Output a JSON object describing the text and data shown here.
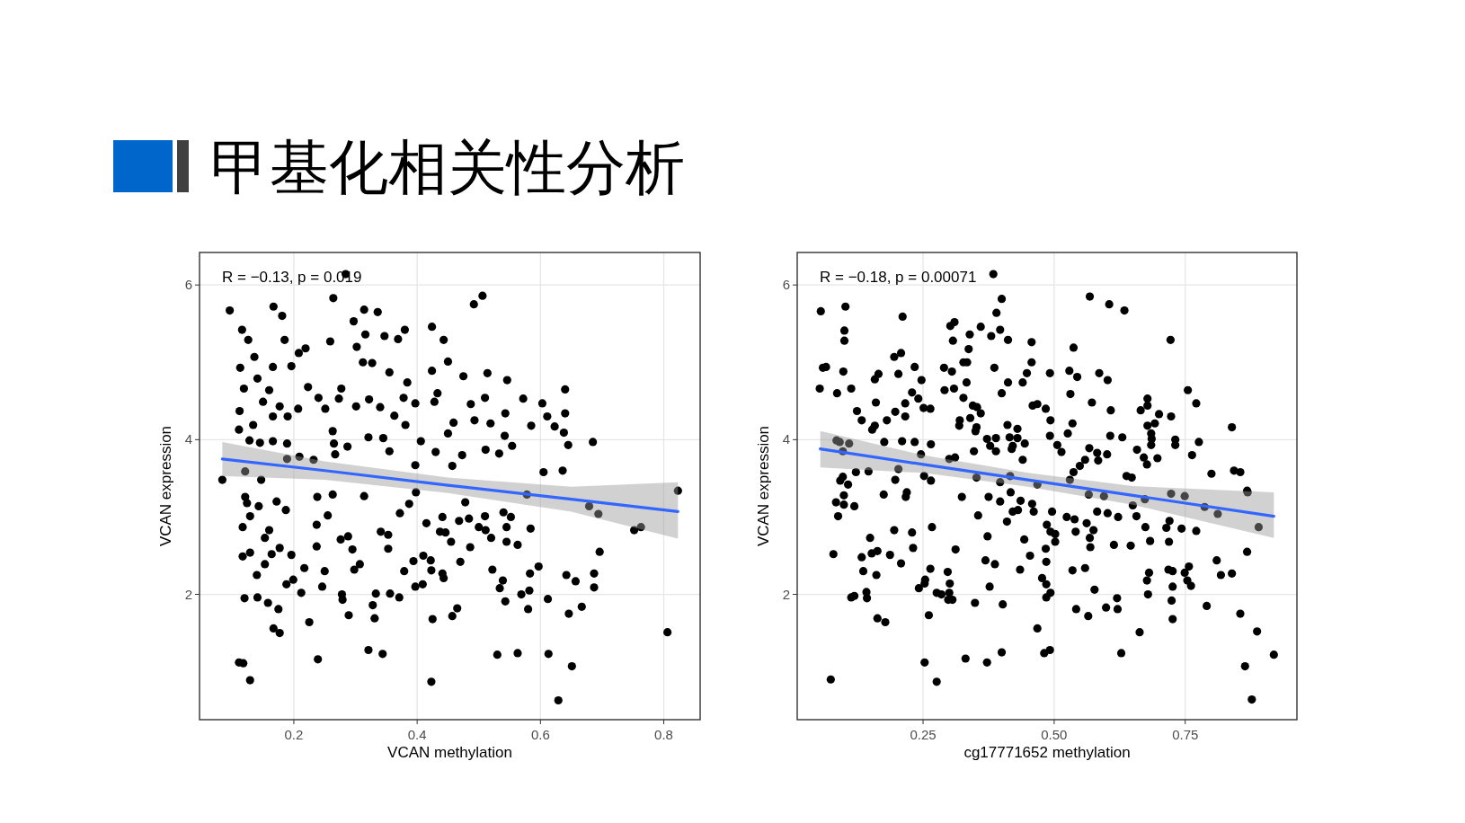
{
  "chart_data": [
    {
      "type": "scatter",
      "title": "甲基化相关性分析",
      "xlabel": "VCAN methylation",
      "ylabel": "VCAN expression",
      "annotations": [
        "R = −0.13, p = 0.019"
      ],
      "xlim": [
        0.047,
        0.859
      ],
      "ylim": [
        0.38,
        6.42
      ],
      "xticks": [
        0.2,
        0.4,
        0.6,
        0.8
      ],
      "yticks": [
        2,
        4,
        6
      ],
      "grid": true,
      "series": [
        {
          "marker": "circle",
          "color": "#000000",
          "x": [
            0.096,
            0.167,
            0.264,
            0.284,
            0.314,
            0.336,
            0.492,
            0.506,
            0.116,
            0.181,
            0.185,
            0.126,
            0.259,
            0.297,
            0.316,
            0.38,
            0.424,
            0.443,
            0.208,
            0.219,
            0.302,
            0.347,
            0.369,
            0.113,
            0.136,
            0.166,
            0.196,
            0.312,
            0.327,
            0.45,
            0.424,
            0.355,
            0.514,
            0.475,
            0.546,
            0.119,
            0.16,
            0.141,
            0.223,
            0.277,
            0.384,
            0.433,
            0.112,
            0.15,
            0.177,
            0.19,
            0.207,
            0.24,
            0.251,
            0.273,
            0.301,
            0.322,
            0.34,
            0.363,
            0.378,
            0.397,
            0.428,
            0.51,
            0.487,
            0.572,
            0.603,
            0.64,
            0.64,
            0.611,
            0.623,
            0.638,
            0.685,
            0.585,
            0.543,
            0.519,
            0.493,
            0.459,
            0.45,
            0.381,
            0.345,
            0.321,
            0.263,
            0.166,
            0.134,
            0.111,
            0.128,
            0.166,
            0.189,
            0.145,
            0.265,
            0.287,
            0.355,
            0.406,
            0.43,
            0.511,
            0.533,
            0.554,
            0.542,
            0.645,
            0.084,
            0.605,
            0.636,
            0.823,
            0.473,
            0.397,
            0.457,
            0.189,
            0.209,
            0.232,
            0.147,
            0.121,
            0.267,
            0.121,
            0.124,
            0.143,
            0.172,
            0.187,
            0.129,
            0.117,
            0.16,
            0.153,
            0.177,
            0.117,
            0.129,
            0.164,
            0.196,
            0.153,
            0.14,
            0.188,
            0.199,
            0.212,
            0.12,
            0.141,
            0.158,
            0.175,
            0.167,
            0.177,
            0.111,
            0.118,
            0.129,
            0.238,
            0.263,
            0.255,
            0.237,
            0.237,
            0.217,
            0.25,
            0.246,
            0.225,
            0.239,
            0.276,
            0.288,
            0.295,
            0.298,
            0.307,
            0.278,
            0.279,
            0.289,
            0.328,
            0.331,
            0.333,
            0.321,
            0.344,
            0.356,
            0.341,
            0.353,
            0.353,
            0.371,
            0.379,
            0.394,
            0.397,
            0.409,
            0.41,
            0.422,
            0.423,
            0.441,
            0.443,
            0.425,
            0.423,
            0.415,
            0.437,
            0.446,
            0.441,
            0.455,
            0.47,
            0.468,
            0.484,
            0.486,
            0.478,
            0.465,
            0.457,
            0.5,
            0.511,
            0.52,
            0.51,
            0.54,
            0.552,
            0.545,
            0.545,
            0.563,
            0.584,
            0.522,
            0.539,
            0.534,
            0.543,
            0.569,
            0.582,
            0.58,
            0.597,
            0.583,
            0.612,
            0.642,
            0.657,
            0.646,
            0.667,
            0.687,
            0.687,
            0.696,
            0.679,
            0.694,
            0.752,
            0.763,
            0.806,
            0.53,
            0.563,
            0.613,
            0.651,
            0.629,
            0.578,
            0.387,
            0.372,
            0.398,
            0.314
          ],
          "values": [
            5.67,
            5.72,
            5.83,
            6.14,
            5.68,
            5.65,
            5.75,
            5.86,
            5.42,
            5.6,
            5.29,
            5.29,
            5.27,
            5.53,
            5.36,
            5.42,
            5.46,
            5.29,
            5.12,
            5.18,
            5.2,
            5.34,
            5.3,
            4.93,
            5.07,
            4.94,
            4.95,
            5.0,
            4.99,
            5.01,
            4.89,
            4.87,
            4.86,
            4.82,
            4.77,
            4.66,
            4.64,
            4.79,
            4.68,
            4.66,
            4.74,
            4.6,
            4.37,
            4.49,
            4.43,
            4.3,
            4.4,
            4.54,
            4.4,
            4.53,
            4.43,
            4.52,
            4.42,
            4.31,
            4.54,
            4.47,
            4.49,
            4.54,
            4.46,
            4.53,
            4.47,
            4.65,
            4.34,
            4.3,
            4.17,
            4.09,
            3.97,
            4.18,
            4.34,
            4.21,
            4.25,
            4.22,
            4.08,
            4.19,
            4.02,
            4.03,
            4.11,
            4.3,
            4.19,
            4.13,
            3.99,
            3.98,
            3.95,
            3.96,
            3.95,
            3.91,
            3.85,
            3.98,
            3.84,
            3.87,
            3.82,
            3.92,
            4.05,
            3.93,
            3.48,
            3.58,
            3.6,
            3.34,
            3.8,
            3.67,
            3.66,
            3.75,
            3.78,
            3.74,
            3.48,
            3.59,
            3.81,
            3.26,
            3.18,
            3.14,
            3.2,
            3.09,
            3.01,
            2.87,
            2.83,
            2.73,
            2.6,
            2.49,
            2.54,
            2.52,
            2.51,
            2.39,
            2.25,
            2.13,
            2.19,
            2.02,
            1.95,
            1.96,
            1.89,
            1.81,
            1.56,
            1.5,
            1.12,
            1.11,
            0.89,
            3.26,
            3.29,
            3.02,
            2.9,
            2.62,
            2.34,
            2.3,
            2.1,
            1.64,
            1.16,
            2.71,
            2.75,
            2.58,
            2.32,
            2.39,
            2.0,
            1.93,
            1.73,
            1.86,
            1.69,
            2.01,
            1.28,
            1.23,
            2.01,
            2.81,
            2.77,
            2.59,
            1.96,
            2.3,
            2.43,
            2.1,
            2.13,
            2.5,
            2.44,
            2.31,
            2.27,
            2.21,
            1.68,
            0.87,
            2.92,
            2.81,
            2.8,
            3.0,
            2.68,
            2.42,
            2.95,
            2.98,
            2.61,
            3.19,
            1.82,
            1.72,
            2.87,
            2.83,
            2.73,
            3.01,
            3.06,
            3.0,
            2.87,
            2.68,
            2.64,
            2.85,
            2.32,
            2.18,
            2.08,
            1.91,
            2.0,
            2.05,
            1.81,
            2.36,
            2.27,
            1.94,
            2.25,
            2.17,
            1.75,
            1.84,
            2.27,
            2.09,
            2.55,
            3.14,
            3.04,
            2.83,
            2.87,
            1.51,
            1.22,
            1.24,
            1.23,
            1.07,
            0.63,
            3.29,
            3.17,
            3.05,
            3.32,
            3.27
          ]
        },
        {
          "type": "line",
          "marker": "none",
          "color": "#3366ff",
          "x": [
            0.084,
            0.25,
            0.45,
            0.65,
            0.823
          ],
          "values": [
            3.75,
            3.6,
            3.41,
            3.23,
            3.07
          ],
          "lower": [
            3.53,
            3.48,
            3.31,
            3.07,
            2.72
          ],
          "upper": [
            3.97,
            3.72,
            3.51,
            3.39,
            3.45
          ]
        }
      ]
    },
    {
      "type": "scatter",
      "xlabel": "cg17771652 methylation",
      "ylabel": "VCAN expression",
      "annotations": [
        "R = −0.18, p = 0.00071"
      ],
      "xlim": [
        0.01,
        0.963
      ],
      "ylim": [
        0.38,
        6.42
      ],
      "xticks": [
        {
          "value": 0.25,
          "label": "0.25"
        },
        {
          "value": 0.5,
          "label": "0.50"
        },
        {
          "value": 0.75,
          "label": "0.75"
        }
      ],
      "yticks": [
        2,
        4,
        6
      ],
      "grid": true,
      "series": [
        {
          "marker": "circle",
          "color": "#000000",
          "x": [
            0.055,
            0.102,
            0.1,
            0.1,
            0.211,
            0.384,
            0.4,
            0.39,
            0.568,
            0.605,
            0.634,
            0.722,
            0.302,
            0.31,
            0.307,
            0.339,
            0.36,
            0.38,
            0.397,
            0.412,
            0.457,
            0.537,
            0.337,
            0.195,
            0.208,
            0.059,
            0.065,
            0.098,
            0.053,
            0.086,
            0.113,
            0.158,
            0.165,
            0.203,
            0.234,
            0.247,
            0.29,
            0.305,
            0.327,
            0.334,
            0.333,
            0.386,
            0.412,
            0.457,
            0.448,
            0.44,
            0.492,
            0.529,
            0.544,
            0.586,
            0.602,
            0.755,
            0.291,
            0.309,
            0.4,
            0.531,
            0.572,
            0.608,
            0.771,
            0.678,
            0.678,
            0.665,
            0.7,
            0.723,
            0.678,
            0.692,
            0.685,
            0.686,
            0.685,
            0.731,
            0.731,
            0.776,
            0.763,
            0.839,
            0.8,
            0.843,
            0.855,
            0.868,
            0.658,
            0.671,
            0.677,
            0.697,
            0.638,
            0.648,
            0.63,
            0.607,
            0.567,
            0.582,
            0.584,
            0.601,
            0.559,
            0.549,
            0.537,
            0.514,
            0.506,
            0.492,
            0.493,
            0.484,
            0.526,
            0.535,
            0.468,
            0.459,
            0.411,
            0.43,
            0.415,
            0.43,
            0.444,
            0.44,
            0.421,
            0.419,
            0.389,
            0.372,
            0.378,
            0.389,
            0.347,
            0.352,
            0.35,
            0.34,
            0.36,
            0.353,
            0.345,
            0.327,
            0.32,
            0.319,
            0.3,
            0.311,
            0.251,
            0.264,
            0.241,
            0.229,
            0.216,
            0.216,
            0.197,
            0.181,
            0.16,
            0.158,
            0.153,
            0.124,
            0.133,
            0.176,
            0.21,
            0.234,
            0.265,
            0.246,
            0.085,
            0.091,
            0.109,
            0.097,
            0.097,
            0.092,
            0.122,
            0.146,
            0.107,
            0.203,
            0.197,
            0.252,
            0.265,
            0.352,
            0.416,
            0.397,
            0.468,
            0.53,
            0.084,
            0.099,
            0.099,
            0.119,
            0.088,
            0.175,
            0.217,
            0.219,
            0.324,
            0.375,
            0.397,
            0.417,
            0.436,
            0.458,
            0.421,
            0.431,
            0.461,
            0.496,
            0.355,
            0.41,
            0.524,
            0.539,
            0.582,
            0.602,
            0.622,
            0.657,
            0.65,
            0.566,
            0.595,
            0.673,
            0.723,
            0.749,
            0.787,
            0.812,
            0.869,
            0.89,
            0.72,
            0.714,
            0.743,
            0.771,
            0.674,
            0.683,
            0.719,
            0.614,
            0.646,
            0.562,
            0.575,
            0.568,
            0.569,
            0.541,
            0.486,
            0.493,
            0.502,
            0.502,
            0.484,
            0.485,
            0.443,
            0.454,
            0.435,
            0.373,
            0.369,
            0.387,
            0.377,
            0.402,
            0.349,
            0.312,
            0.267,
            0.264,
            0.254,
            0.253,
            0.242,
            0.297,
            0.301,
            0.3,
            0.298,
            0.306,
            0.276,
            0.285,
            0.261,
            0.229,
            0.231,
            0.195,
            0.208,
            0.187,
            0.163,
            0.152,
            0.149,
            0.133,
            0.136,
            0.161,
            0.079,
            0.142,
            0.143,
            0.113,
            0.119,
            0.163,
            0.178,
            0.253,
            0.276,
            0.074,
            0.331,
            0.372,
            0.4,
            0.468,
            0.481,
            0.492,
            0.485,
            0.493,
            0.477,
            0.485,
            0.535,
            0.559,
            0.577,
            0.542,
            0.565,
            0.599,
            0.62,
            0.621,
            0.628,
            0.663,
            0.679,
            0.677,
            0.681,
            0.718,
            0.726,
            0.726,
            0.724,
            0.726,
            0.749,
            0.757,
            0.754,
            0.761,
            0.791,
            0.81,
            0.818,
            0.839,
            0.868,
            0.855,
            0.887,
            0.864,
            0.919,
            0.877
          ],
          "values": [
            5.66,
            5.72,
            5.41,
            5.28,
            5.59,
            6.14,
            5.82,
            5.64,
            5.85,
            5.75,
            5.67,
            5.29,
            5.47,
            5.52,
            5.28,
            5.36,
            5.46,
            5.34,
            5.42,
            5.29,
            5.26,
            5.19,
            5.17,
            5.07,
            5.12,
            4.93,
            4.94,
            4.88,
            4.66,
            4.6,
            4.66,
            4.78,
            4.85,
            4.85,
            4.94,
            4.77,
            4.93,
            4.88,
            5.0,
            5.0,
            4.74,
            4.93,
            4.74,
            5.0,
            4.86,
            4.74,
            4.86,
            4.89,
            4.81,
            4.86,
            4.77,
            4.64,
            4.64,
            4.66,
            4.6,
            4.59,
            4.48,
            4.38,
            4.47,
            4.53,
            4.44,
            4.38,
            4.33,
            4.3,
            4.18,
            4.21,
            4.08,
            4.01,
            3.93,
            4.0,
            3.93,
            3.97,
            3.8,
            4.16,
            3.56,
            3.6,
            3.58,
            3.34,
            3.87,
            3.77,
            3.68,
            3.76,
            3.53,
            3.51,
            4.03,
            4.05,
            3.89,
            3.83,
            3.73,
            3.81,
            3.74,
            3.66,
            3.58,
            3.84,
            3.93,
            4.05,
            4.25,
            4.4,
            4.08,
            4.21,
            4.46,
            4.44,
            4.19,
            4.14,
            4.03,
            4.02,
            3.95,
            3.74,
            3.92,
            3.88,
            4.02,
            4.01,
            3.92,
            3.85,
            3.85,
            4.16,
            4.11,
            4.28,
            4.34,
            4.42,
            4.44,
            4.54,
            4.25,
            4.18,
            3.75,
            3.77,
            4.41,
            4.4,
            4.53,
            4.61,
            4.47,
            4.3,
            4.36,
            4.25,
            4.48,
            4.18,
            4.13,
            4.37,
            4.25,
            3.97,
            3.98,
            3.97,
            3.94,
            3.81,
            3.99,
            3.97,
            3.95,
            3.85,
            3.52,
            3.47,
            3.58,
            3.59,
            3.42,
            3.62,
            3.48,
            3.53,
            3.47,
            3.51,
            3.53,
            3.45,
            3.42,
            3.48,
            3.19,
            3.28,
            3.16,
            3.14,
            3.01,
            3.29,
            3.26,
            3.32,
            3.26,
            3.26,
            3.2,
            3.32,
            3.21,
            3.17,
            3.07,
            3.09,
            3.07,
            3.07,
            3.02,
            2.94,
            3.0,
            2.97,
            3.07,
            3.05,
            3.0,
            3.01,
            3.15,
            3.29,
            3.27,
            3.23,
            3.3,
            3.27,
            3.13,
            3.04,
            3.32,
            2.87,
            2.95,
            2.86,
            2.85,
            2.82,
            2.87,
            2.69,
            2.68,
            2.64,
            2.63,
            2.92,
            2.83,
            2.73,
            2.61,
            2.81,
            2.9,
            2.81,
            2.78,
            2.68,
            2.59,
            2.42,
            2.71,
            2.5,
            2.32,
            2.75,
            2.44,
            2.39,
            2.1,
            1.87,
            1.89,
            2.58,
            2.87,
            2.33,
            2.19,
            2.14,
            2.08,
            2.29,
            2.14,
            2.02,
            1.93,
            1.93,
            2.02,
            2.0,
            1.73,
            2.8,
            2.6,
            2.83,
            2.4,
            2.51,
            2.56,
            2.53,
            2.73,
            2.48,
            2.3,
            2.25,
            2.52,
            2.03,
            1.95,
            1.96,
            1.98,
            1.69,
            1.64,
            1.12,
            0.87,
            0.9,
            1.17,
            1.12,
            1.25,
            1.56,
            1.24,
            1.28,
            1.96,
            2.02,
            2.21,
            2.13,
            2.31,
            2.34,
            2.06,
            1.81,
            1.72,
            1.83,
            1.95,
            1.81,
            1.24,
            1.51,
            2.0,
            2.18,
            2.28,
            2.32,
            2.3,
            2.1,
            1.92,
            1.68,
            2.28,
            2.36,
            2.18,
            2.11,
            1.85,
            2.44,
            2.25,
            2.27,
            2.55,
            1.75,
            1.52,
            1.07,
            1.22,
            0.64
          ]
        },
        {
          "type": "line",
          "marker": "none",
          "color": "#3366ff",
          "x": [
            0.054,
            0.25,
            0.45,
            0.65,
            0.919
          ],
          "values": [
            3.88,
            3.68,
            3.48,
            3.28,
            3.01
          ],
          "lower": [
            3.64,
            3.57,
            3.39,
            3.16,
            2.73
          ],
          "upper": [
            4.11,
            3.8,
            3.57,
            3.4,
            3.32
          ]
        }
      ]
    }
  ]
}
